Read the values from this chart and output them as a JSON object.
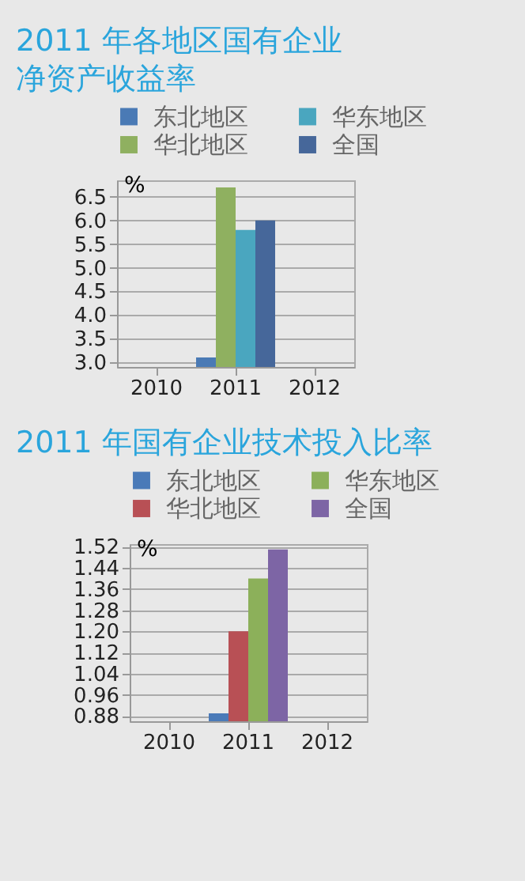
{
  "chart_data": [
    {
      "type": "bar",
      "title": "2011 年各地区国有企业净资产收益率",
      "ylabel": "%",
      "categories": [
        "2010",
        "2011",
        "2012"
      ],
      "ylim": [
        2.9,
        6.85
      ],
      "yticks": [
        {
          "value": 3,
          "label": "3.0"
        },
        3.5,
        {
          "value": 4,
          "label": "4.0"
        },
        4.5,
        {
          "value": 5,
          "label": "5.0"
        },
        5.5,
        {
          "value": 6,
          "label": "6.0"
        },
        6.5
      ],
      "grid": "y",
      "legend": "top",
      "series": [
        {
          "name": "东北地区",
          "color": "#4a7ab5",
          "values": [
            null,
            3.1,
            null
          ]
        },
        {
          "name": "华北地区",
          "color": "#8fb060",
          "values": [
            null,
            6.7,
            null
          ]
        },
        {
          "name": "华东地区",
          "color": "#4aa6bf",
          "values": [
            null,
            5.8,
            null
          ]
        },
        {
          "name": "全国",
          "color": "#46679a",
          "values": [
            null,
            6.0,
            null
          ]
        }
      ]
    },
    {
      "type": "bar",
      "title": "2011 年国有企业技术投入比率",
      "ylabel": "%",
      "categories": [
        "2010",
        "2011",
        "2012"
      ],
      "ylim": [
        0.86,
        1.53
      ],
      "yticks": [
        0.88,
        0.96,
        1.04,
        1.12,
        {
          "value": 1.2,
          "label": "1.20"
        },
        1.28,
        1.36,
        1.44,
        1.52
      ],
      "grid": "y",
      "legend": "top",
      "series": [
        {
          "name": "东北地区",
          "color": "#4a7ab8",
          "values": [
            null,
            0.89,
            null
          ]
        },
        {
          "name": "华北地区",
          "color": "#b85055",
          "values": [
            null,
            1.2,
            null
          ]
        },
        {
          "name": "华东地区",
          "color": "#8cb05a",
          "values": [
            null,
            1.4,
            null
          ]
        },
        {
          "name": "全国",
          "color": "#7d65a5",
          "values": [
            null,
            1.51,
            null
          ]
        }
      ]
    }
  ]
}
